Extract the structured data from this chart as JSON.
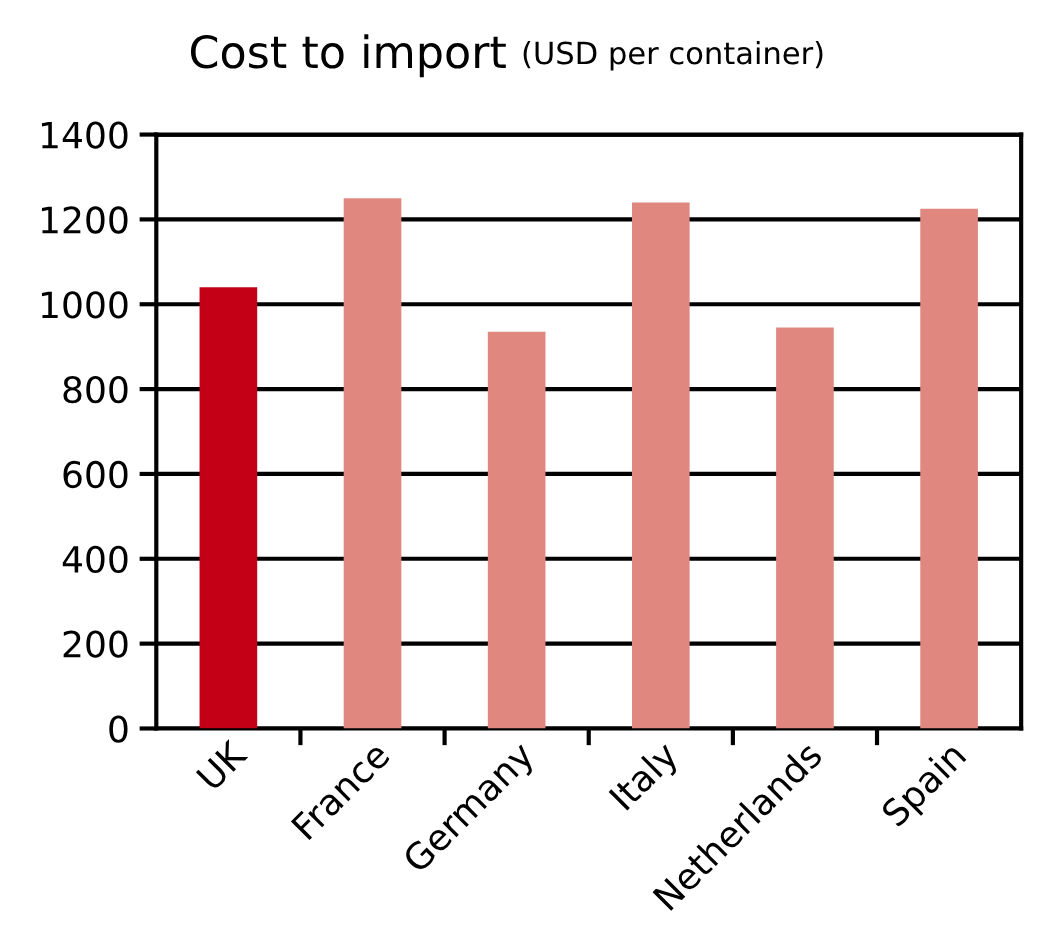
{
  "chart_data": {
    "type": "bar",
    "title": "Cost to import",
    "subtitle": "(USD per container)",
    "categories": [
      "UK",
      "France",
      "Germany",
      "Italy",
      "Netherlands",
      "Spain"
    ],
    "values": [
      1040,
      1250,
      935,
      1240,
      945,
      1225
    ],
    "colors": [
      "#c40016",
      "#e08880",
      "#e08880",
      "#e08880",
      "#e08880",
      "#e08880"
    ],
    "ylim": [
      0,
      1400
    ],
    "yticks": [
      0,
      200,
      400,
      600,
      800,
      1000,
      1200,
      1400
    ],
    "grid": "y",
    "legend": false
  }
}
